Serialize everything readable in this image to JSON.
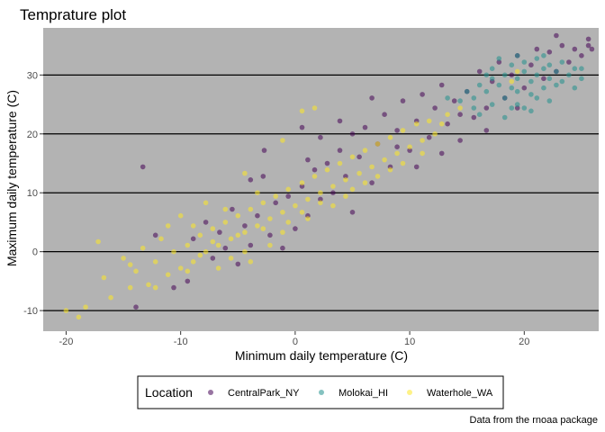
{
  "chart_data": {
    "type": "scatter",
    "title": "Temprature plot",
    "xlabel": "Minimum daily temperature (C)",
    "ylabel": "Maximum daily temperature (C)",
    "caption": "Data from the rnoaa package",
    "xlim": [
      -22,
      26.5
    ],
    "ylim": [
      -13.5,
      38
    ],
    "x_ticks": [
      -20,
      -10,
      0,
      10,
      20
    ],
    "x_tick_labels": [
      "-20",
      "-10",
      "0",
      "10",
      "20"
    ],
    "y_ticks": [
      -10,
      0,
      10,
      20,
      30
    ],
    "y_tick_labels": [
      "-10",
      "0",
      "10",
      "20",
      "30"
    ],
    "grid": "major horizontal lines only",
    "panel_background": "#b3b3b3",
    "point_opacity": 0.55,
    "legend": {
      "title": "Location",
      "placement": "bottom"
    },
    "series": [
      {
        "name": "CentralPark_NY",
        "color": "#440154",
        "points": [
          [
            -13.3,
            14.4
          ],
          [
            -13.9,
            -9.4
          ],
          [
            -12.2,
            2.8
          ],
          [
            -8.9,
            2.2
          ],
          [
            -7.8,
            5.0
          ],
          [
            -7.2,
            -1.1
          ],
          [
            -6.6,
            3.3
          ],
          [
            -6.1,
            0.6
          ],
          [
            -5.5,
            7.2
          ],
          [
            -5.0,
            -2.1
          ],
          [
            -4.4,
            4.4
          ],
          [
            -3.9,
            1.1
          ],
          [
            -3.3,
            6.1
          ],
          [
            -2.8,
            12.8
          ],
          [
            -2.7,
            17.2
          ],
          [
            -2.2,
            2.8
          ],
          [
            -1.7,
            8.3
          ],
          [
            -1.1,
            0.6
          ],
          [
            -0.6,
            9.4
          ],
          [
            0.0,
            3.9
          ],
          [
            0.6,
            11.1
          ],
          [
            0.6,
            21.1
          ],
          [
            1.1,
            6.1
          ],
          [
            1.7,
            13.9
          ],
          [
            2.2,
            8.9
          ],
          [
            2.2,
            19.4
          ],
          [
            2.8,
            15.0
          ],
          [
            3.3,
            10.0
          ],
          [
            3.9,
            17.2
          ],
          [
            4.4,
            12.8
          ],
          [
            5.0,
            20.0
          ],
          [
            5.0,
            6.7
          ],
          [
            5.6,
            16.1
          ],
          [
            6.1,
            21.1
          ],
          [
            6.7,
            11.7
          ],
          [
            7.2,
            18.3
          ],
          [
            7.8,
            23.3
          ],
          [
            8.3,
            14.4
          ],
          [
            8.9,
            20.6
          ],
          [
            9.4,
            25.6
          ],
          [
            10.0,
            17.2
          ],
          [
            10.6,
            22.2
          ],
          [
            11.1,
            26.7
          ],
          [
            11.7,
            19.4
          ],
          [
            12.2,
            24.4
          ],
          [
            12.8,
            28.3
          ],
          [
            13.3,
            21.7
          ],
          [
            13.9,
            25.6
          ],
          [
            14.4,
            18.9
          ],
          [
            15.0,
            27.2
          ],
          [
            15.6,
            22.8
          ],
          [
            16.1,
            30.6
          ],
          [
            16.7,
            24.4
          ],
          [
            17.2,
            28.9
          ],
          [
            17.8,
            32.2
          ],
          [
            18.3,
            26.1
          ],
          [
            18.9,
            30.0
          ],
          [
            19.4,
            33.3
          ],
          [
            20.0,
            27.8
          ],
          [
            20.6,
            31.7
          ],
          [
            21.1,
            34.4
          ],
          [
            21.7,
            29.4
          ],
          [
            22.2,
            33.9
          ],
          [
            22.8,
            30.6
          ],
          [
            23.3,
            35.0
          ],
          [
            23.9,
            32.2
          ],
          [
            24.4,
            34.4
          ],
          [
            25.0,
            33.3
          ],
          [
            25.6,
            35.0
          ],
          [
            25.6,
            36.1
          ],
          [
            25.9,
            34.4
          ],
          [
            22.8,
            36.7
          ],
          [
            -9.4,
            -5.0
          ],
          [
            -10.6,
            -6.1
          ],
          [
            -3.9,
            12.2
          ],
          [
            1.1,
            15.6
          ],
          [
            3.9,
            22.2
          ],
          [
            6.7,
            26.1
          ],
          [
            8.9,
            17.8
          ],
          [
            10.6,
            14.4
          ],
          [
            12.8,
            16.7
          ],
          [
            14.4,
            23.3
          ],
          [
            16.7,
            20.6
          ],
          [
            19.4,
            24.4
          ]
        ]
      },
      {
        "name": "Molokai_HI",
        "color": "#21908c",
        "points": [
          [
            14.4,
            25.6
          ],
          [
            15.0,
            27.2
          ],
          [
            15.6,
            26.1
          ],
          [
            16.1,
            28.3
          ],
          [
            16.7,
            27.2
          ],
          [
            17.2,
            29.4
          ],
          [
            17.8,
            28.3
          ],
          [
            18.3,
            30.0
          ],
          [
            18.9,
            27.8
          ],
          [
            19.4,
            29.4
          ],
          [
            20.0,
            30.6
          ],
          [
            20.6,
            28.9
          ],
          [
            21.1,
            30.0
          ],
          [
            21.7,
            31.1
          ],
          [
            22.2,
            29.4
          ],
          [
            22.8,
            30.6
          ],
          [
            23.3,
            28.9
          ],
          [
            23.9,
            30.0
          ],
          [
            24.4,
            31.1
          ],
          [
            25.0,
            29.4
          ],
          [
            16.1,
            23.3
          ],
          [
            17.2,
            25.0
          ],
          [
            18.3,
            26.1
          ],
          [
            19.4,
            27.2
          ],
          [
            20.6,
            26.7
          ],
          [
            21.7,
            27.8
          ],
          [
            22.8,
            28.3
          ],
          [
            18.9,
            31.7
          ],
          [
            20.0,
            32.2
          ],
          [
            21.1,
            32.8
          ],
          [
            22.2,
            31.7
          ],
          [
            17.8,
            32.8
          ],
          [
            19.4,
            33.3
          ],
          [
            20.0,
            24.4
          ],
          [
            18.3,
            22.8
          ],
          [
            15.6,
            24.4
          ],
          [
            13.3,
            26.1
          ],
          [
            21.7,
            33.3
          ],
          [
            23.3,
            32.2
          ],
          [
            24.4,
            27.8
          ],
          [
            25.0,
            31.1
          ],
          [
            16.7,
            30.0
          ],
          [
            19.4,
            25.0
          ],
          [
            20.6,
            23.9
          ],
          [
            22.2,
            25.6
          ],
          [
            17.2,
            31.1
          ],
          [
            18.9,
            24.4
          ],
          [
            21.1,
            26.1
          ]
        ]
      },
      {
        "name": "Waterhole_WA",
        "color": "#fde725",
        "points": [
          [
            -20.0,
            -10.0
          ],
          [
            -18.9,
            -11.1
          ],
          [
            -18.3,
            -9.4
          ],
          [
            -17.2,
            1.7
          ],
          [
            -16.7,
            -4.4
          ],
          [
            -16.1,
            -7.8
          ],
          [
            -15.0,
            -1.1
          ],
          [
            -14.4,
            -6.1
          ],
          [
            -13.9,
            -3.3
          ],
          [
            -13.3,
            0.6
          ],
          [
            -12.8,
            -5.6
          ],
          [
            -12.2,
            -1.7
          ],
          [
            -11.7,
            2.2
          ],
          [
            -11.1,
            -3.9
          ],
          [
            -10.6,
            0.0
          ],
          [
            -10.0,
            -2.8
          ],
          [
            -10.0,
            6.1
          ],
          [
            -9.4,
            1.1
          ],
          [
            -8.9,
            -1.7
          ],
          [
            -8.3,
            2.8
          ],
          [
            -7.8,
            0.0
          ],
          [
            -7.2,
            3.9
          ],
          [
            -6.7,
            1.1
          ],
          [
            -6.1,
            5.0
          ],
          [
            -5.6,
            2.2
          ],
          [
            -5.0,
            6.1
          ],
          [
            -4.4,
            3.3
          ],
          [
            -3.9,
            7.2
          ],
          [
            -3.3,
            4.4
          ],
          [
            -2.8,
            8.3
          ],
          [
            -2.2,
            5.6
          ],
          [
            -1.7,
            9.4
          ],
          [
            -1.1,
            6.7
          ],
          [
            -0.6,
            10.6
          ],
          [
            0.0,
            7.8
          ],
          [
            0.6,
            11.7
          ],
          [
            1.1,
            8.9
          ],
          [
            1.7,
            12.8
          ],
          [
            2.2,
            10.0
          ],
          [
            2.8,
            13.9
          ],
          [
            3.3,
            11.1
          ],
          [
            3.9,
            15.0
          ],
          [
            4.4,
            12.2
          ],
          [
            5.0,
            16.1
          ],
          [
            5.6,
            13.3
          ],
          [
            6.1,
            17.2
          ],
          [
            6.7,
            14.4
          ],
          [
            7.2,
            18.3
          ],
          [
            7.8,
            15.6
          ],
          [
            8.3,
            19.4
          ],
          [
            8.9,
            16.7
          ],
          [
            9.4,
            20.6
          ],
          [
            10.0,
            17.8
          ],
          [
            10.6,
            21.7
          ],
          [
            11.1,
            18.9
          ],
          [
            11.7,
            22.2
          ],
          [
            12.2,
            20.0
          ],
          [
            12.8,
            21.7
          ],
          [
            13.3,
            23.3
          ],
          [
            14.4,
            24.4
          ],
          [
            0.6,
            23.9
          ],
          [
            1.7,
            24.4
          ],
          [
            -1.1,
            18.9
          ],
          [
            -4.4,
            13.3
          ],
          [
            -7.8,
            8.3
          ],
          [
            -11.1,
            4.4
          ],
          [
            -6.1,
            7.2
          ],
          [
            -3.3,
            10.0
          ],
          [
            -8.9,
            4.4
          ],
          [
            -2.2,
            1.1
          ],
          [
            -5.6,
            -1.1
          ],
          [
            -9.4,
            -3.3
          ],
          [
            -12.2,
            -6.1
          ],
          [
            -14.4,
            -2.2
          ],
          [
            -4.4,
            0.0
          ],
          [
            -1.1,
            3.3
          ],
          [
            1.1,
            5.6
          ],
          [
            3.3,
            7.8
          ],
          [
            5.0,
            10.6
          ],
          [
            7.2,
            12.8
          ],
          [
            9.4,
            15.0
          ],
          [
            11.1,
            16.7
          ],
          [
            19.4,
            30.6
          ],
          [
            18.9,
            28.9
          ],
          [
            -3.9,
            -1.7
          ],
          [
            -6.7,
            -2.8
          ],
          [
            -7.2,
            1.7
          ],
          [
            -8.3,
            -0.6
          ],
          [
            -5.0,
            2.8
          ],
          [
            -2.8,
            3.9
          ],
          [
            -0.6,
            5.0
          ],
          [
            0.6,
            6.7
          ],
          [
            2.2,
            8.3
          ],
          [
            4.4,
            9.4
          ],
          [
            6.1,
            11.7
          ],
          [
            8.3,
            13.9
          ]
        ]
      }
    ]
  }
}
